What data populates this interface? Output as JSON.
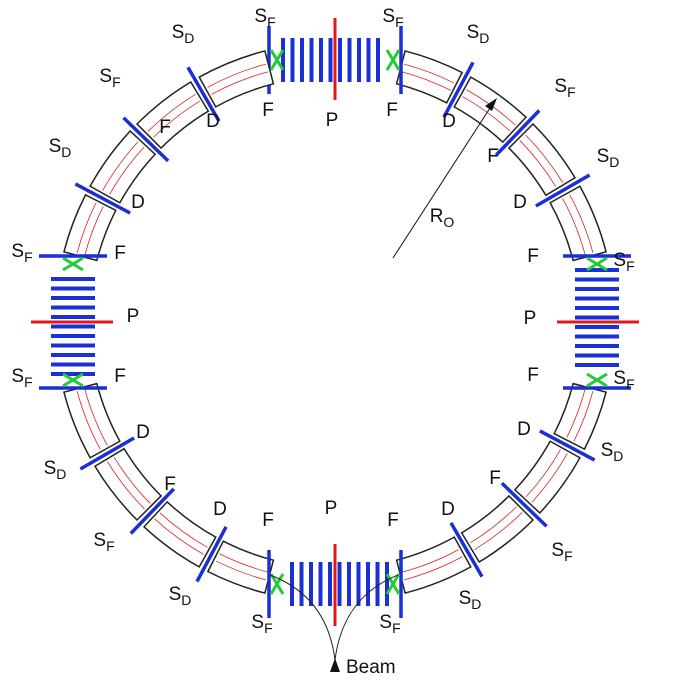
{
  "labels": [
    {
      "text": "S",
      "sub": "F"
    },
    {
      "text": "S",
      "sub": "F"
    },
    {
      "text": "S",
      "sub": "D"
    },
    {
      "text": "S",
      "sub": "D"
    },
    {
      "text": "F"
    },
    {
      "text": "P"
    },
    {
      "text": "F"
    },
    {
      "text": "D"
    },
    {
      "text": "D"
    },
    {
      "text": "S",
      "sub": "F"
    },
    {
      "text": "F"
    },
    {
      "text": "S",
      "sub": "F"
    },
    {
      "text": "F"
    },
    {
      "text": "S",
      "sub": "D"
    },
    {
      "text": "D"
    },
    {
      "text": "S",
      "sub": "F"
    },
    {
      "text": "F"
    },
    {
      "text": "P"
    },
    {
      "text": "S",
      "sub": "F"
    },
    {
      "text": "F"
    },
    {
      "text": "D"
    },
    {
      "text": "S",
      "sub": "D"
    },
    {
      "text": "S",
      "sub": "D"
    },
    {
      "text": "D"
    },
    {
      "text": "F"
    },
    {
      "text": "S",
      "sub": "F"
    },
    {
      "text": "P"
    },
    {
      "text": "F"
    },
    {
      "text": "S",
      "sub": "F"
    },
    {
      "text": "D"
    },
    {
      "text": "S",
      "sub": "D"
    },
    {
      "text": "F"
    },
    {
      "text": "S",
      "sub": "F"
    },
    {
      "text": "D"
    },
    {
      "text": "S",
      "sub": "D"
    },
    {
      "text": "F"
    },
    {
      "text": "S",
      "sub": "F"
    },
    {
      "text": "D"
    },
    {
      "text": "S",
      "sub": "D"
    },
    {
      "text": "F"
    },
    {
      "text": "P"
    },
    {
      "text": "F"
    },
    {
      "text": "S",
      "sub": "F"
    },
    {
      "text": "S",
      "sub": "F"
    }
  ],
  "radius_label": {
    "text": "R",
    "sub": "O"
  },
  "beam_label": "Beam"
}
